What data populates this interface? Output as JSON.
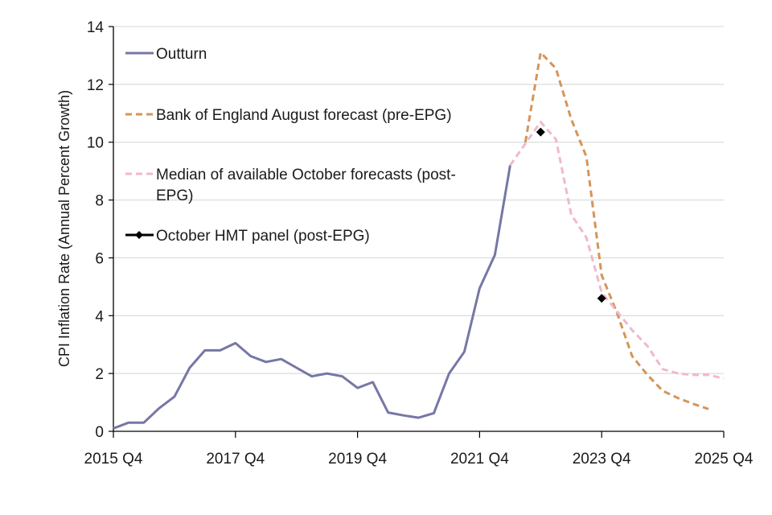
{
  "chart_data": {
    "type": "line",
    "title": "",
    "xlabel": "",
    "ylabel": "CPI Inflation Rate (Annual Percent Growth)",
    "ylim": [
      0,
      14
    ],
    "yticks": [
      0,
      2,
      4,
      6,
      8,
      10,
      12,
      14
    ],
    "grid": true,
    "legend_position": "top-left",
    "x_start": "2015 Q4",
    "x_end": "2025 Q4",
    "xtick_labels": [
      "2015 Q4",
      "2017 Q4",
      "2019 Q4",
      "2021 Q4",
      "2023 Q4",
      "2025 Q4"
    ],
    "x_quarters": [
      "2015 Q4",
      "2016 Q1",
      "2016 Q2",
      "2016 Q3",
      "2016 Q4",
      "2017 Q1",
      "2017 Q2",
      "2017 Q3",
      "2017 Q4",
      "2018 Q1",
      "2018 Q2",
      "2018 Q3",
      "2018 Q4",
      "2019 Q1",
      "2019 Q2",
      "2019 Q3",
      "2019 Q4",
      "2020 Q1",
      "2020 Q2",
      "2020 Q3",
      "2020 Q4",
      "2021 Q1",
      "2021 Q2",
      "2021 Q3",
      "2021 Q4",
      "2022 Q1",
      "2022 Q2",
      "2022 Q3",
      "2022 Q4",
      "2023 Q1",
      "2023 Q2",
      "2023 Q3",
      "2023 Q4",
      "2024 Q1",
      "2024 Q2",
      "2024 Q3",
      "2024 Q4",
      "2025 Q1",
      "2025 Q2",
      "2025 Q3",
      "2025 Q4"
    ],
    "series": [
      {
        "name": "Outturn",
        "color": "#7677a6",
        "style": "solid",
        "start_index": 0,
        "values": [
          0.1,
          0.3,
          0.3,
          0.8,
          1.2,
          2.2,
          2.8,
          2.8,
          3.05,
          2.6,
          2.4,
          2.5,
          2.2,
          1.9,
          2.0,
          1.9,
          1.5,
          1.7,
          0.65,
          0.55,
          0.47,
          0.63,
          2.0,
          2.75,
          4.95,
          6.1,
          9.2
        ]
      },
      {
        "name": "Bank of England August forecast (pre-EPG)",
        "color": "#d4955a",
        "style": "dashed",
        "start_index": 27,
        "values": [
          10.0,
          13.1,
          12.55,
          10.8,
          9.5,
          5.4,
          4.1,
          2.6,
          1.95,
          1.4,
          1.15,
          0.95,
          0.77
        ]
      },
      {
        "name": "Median of available October forecasts (post-EPG)",
        "color": "#f0b9cb",
        "style": "dashed",
        "start_index": 26,
        "values": [
          9.2,
          9.95,
          10.7,
          10.1,
          7.5,
          6.7,
          4.8,
          4.15,
          3.5,
          2.95,
          2.15,
          2.0,
          1.95,
          1.95,
          1.83
        ]
      },
      {
        "name": "October HMT panel (post-EPG)",
        "color": "#000000",
        "style": "markers",
        "points": [
          {
            "x": "2022 Q4",
            "index": 28,
            "value": 10.35
          },
          {
            "x": "2023 Q4",
            "index": 32,
            "value": 4.6
          }
        ]
      }
    ]
  },
  "legend": {
    "items": [
      {
        "lines": [
          "Outturn"
        ]
      },
      {
        "lines": [
          "Bank of England August forecast (pre-EPG)"
        ]
      },
      {
        "lines": [
          "Median of available October forecasts (post-",
          "EPG)"
        ]
      },
      {
        "lines": [
          "October HMT panel (post-EPG)"
        ]
      }
    ]
  }
}
